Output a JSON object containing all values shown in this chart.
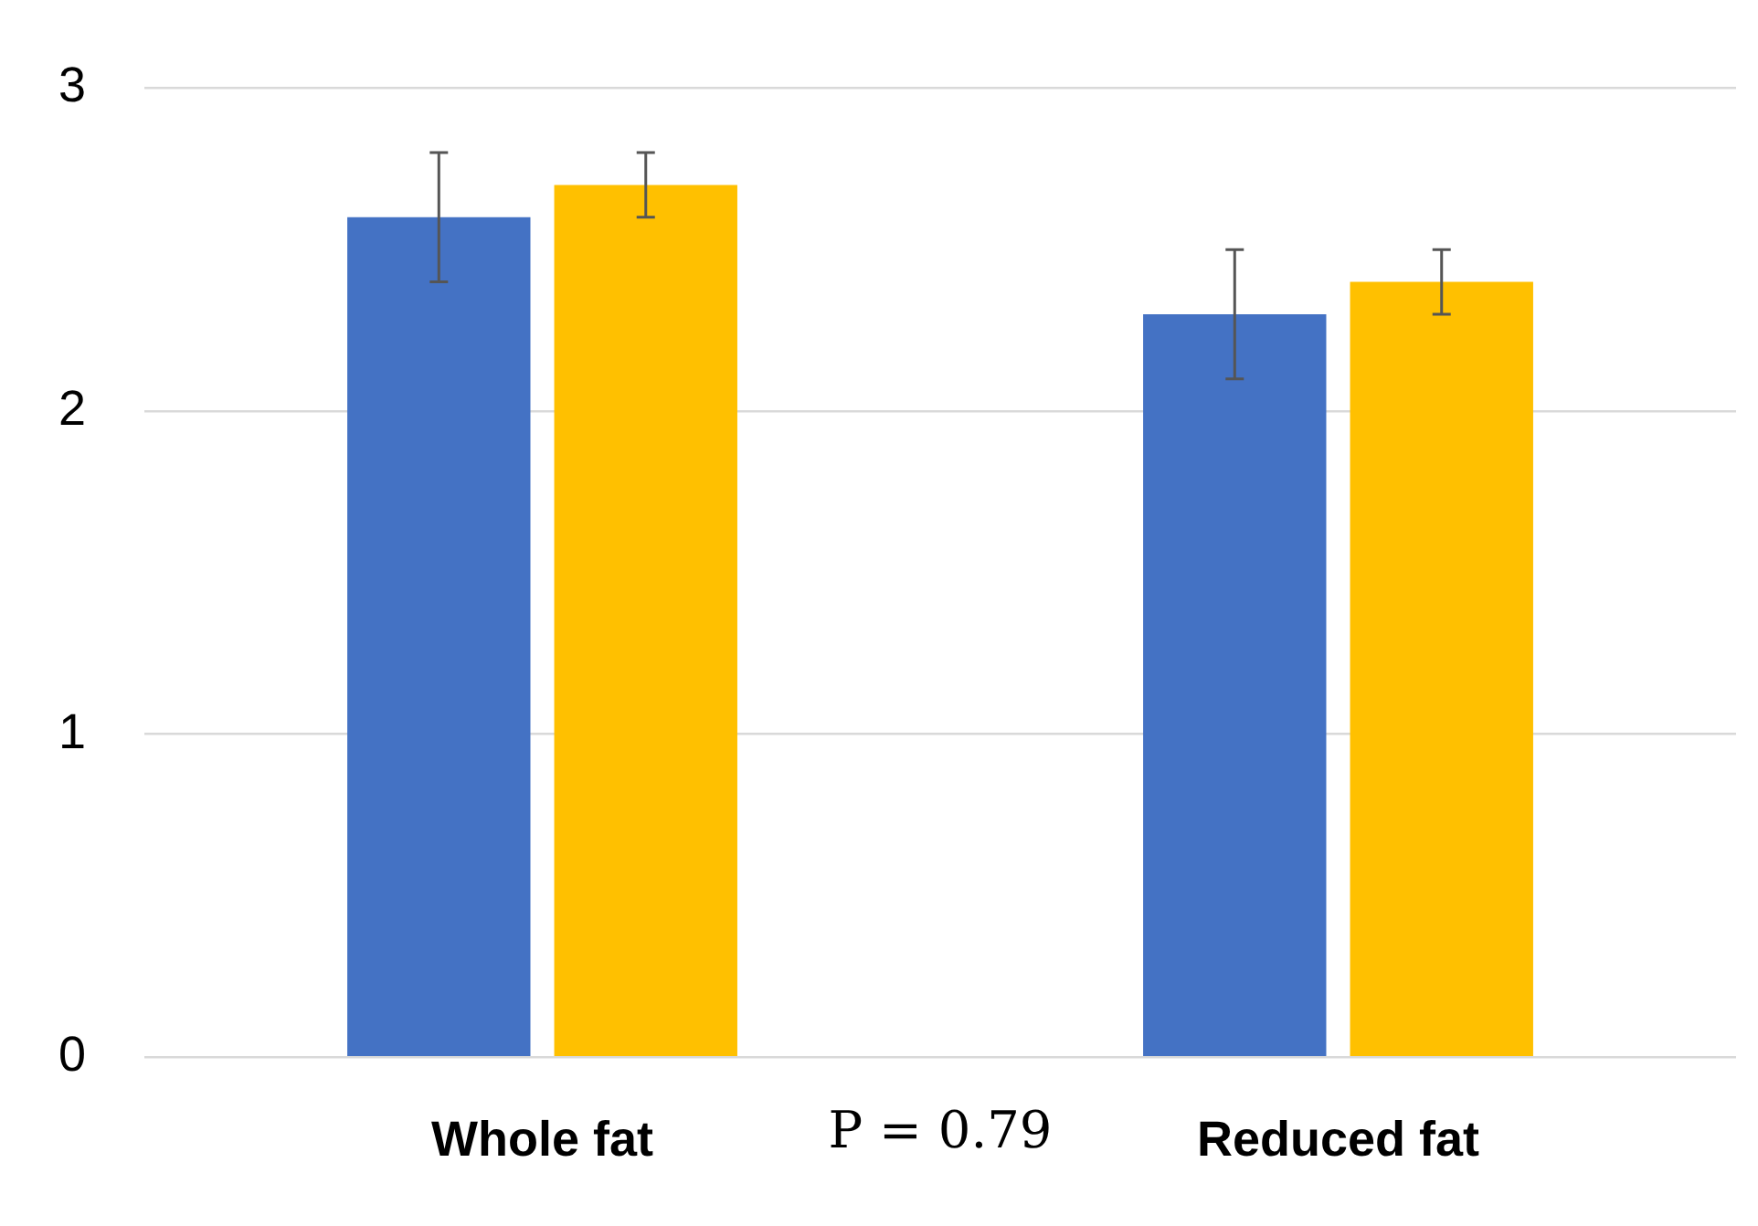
{
  "chart_data": {
    "type": "bar",
    "categories": [
      "Whole fat",
      "Reduced fat"
    ],
    "series": [
      {
        "color": "#4472c4",
        "values": [
          2.6,
          2.3
        ],
        "errors": [
          0.2,
          0.2
        ]
      },
      {
        "color": "#ffc000",
        "values": [
          2.7,
          2.4
        ],
        "errors": [
          0.1,
          0.1
        ]
      }
    ],
    "ylim": [
      0,
      3
    ],
    "yticks": [
      0,
      1,
      2,
      3
    ],
    "grid": "y",
    "annotations": [
      "P = 0.79"
    ]
  }
}
